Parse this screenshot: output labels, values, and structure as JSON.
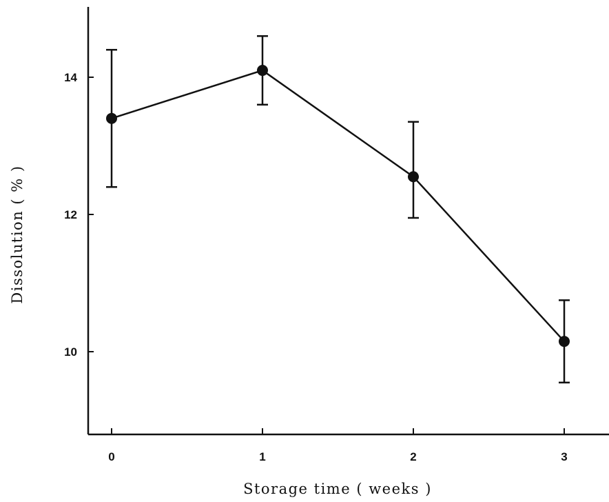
{
  "chart_data": {
    "type": "line",
    "title": "",
    "xlabel": "Storage time ( weeks )",
    "ylabel": "Dissolution ( % )",
    "x": [
      0,
      1,
      2,
      3
    ],
    "xticks": [
      "0",
      "1",
      "2",
      "3"
    ],
    "yticks": [
      10,
      12,
      14
    ],
    "ylim": [
      8.8,
      15.0
    ],
    "xlim": [
      -0.15,
      3.3
    ],
    "grid": false,
    "legend": "none",
    "series": [
      {
        "color": "#111111",
        "values": [
          13.4,
          14.1,
          12.55,
          10.15
        ],
        "err_upper": [
          14.4,
          14.6,
          13.35,
          10.75
        ],
        "err_lower": [
          12.4,
          13.6,
          11.95,
          9.55
        ]
      }
    ]
  }
}
